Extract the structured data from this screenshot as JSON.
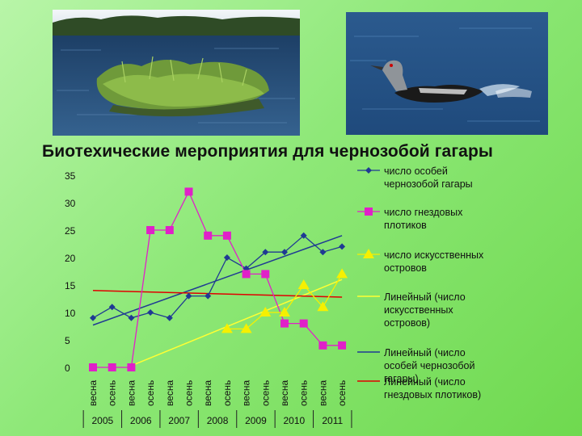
{
  "slide": {
    "title": "Биотехические мероприятия для чернозобой гагары"
  },
  "photos": [
    {
      "name": "island-photo",
      "depicts": "floating island with grass on a lake"
    },
    {
      "name": "loon-photo",
      "depicts": "black-throated loon swimming on water"
    }
  ],
  "chart_data": {
    "type": "line",
    "title": "",
    "xlabel": "",
    "ylabel": "",
    "ylim": [
      0,
      35
    ],
    "yticks": [
      "0",
      "5",
      "10",
      "15",
      "20",
      "25",
      "30",
      "35"
    ],
    "categories": [
      "весна",
      "осень",
      "весна",
      "осень",
      "весна",
      "осень",
      "весна",
      "осень",
      "весна",
      "осень",
      "весна",
      "осень",
      "весна",
      "осень"
    ],
    "years": [
      "2005",
      "2006",
      "2007",
      "2008",
      "2009",
      "2010",
      "2011"
    ],
    "grid": false,
    "legend_position": "right",
    "series": [
      {
        "name": "число особей чернозобой гагары",
        "color": "#1f3a93",
        "marker": "diamond",
        "values": [
          9,
          11,
          9,
          10,
          9,
          13,
          13,
          20,
          18,
          21,
          21,
          24,
          21,
          22
        ]
      },
      {
        "name": "число гнездовых плотиков",
        "color": "#e020c8",
        "marker": "square",
        "values": [
          0,
          0,
          0,
          25,
          25,
          32,
          24,
          24,
          17,
          17,
          8,
          8,
          4,
          4
        ]
      },
      {
        "name": "число искусственных островов",
        "color": "#f5f000",
        "marker": "triangle",
        "values": [
          null,
          null,
          null,
          null,
          null,
          null,
          null,
          7,
          7,
          10,
          10,
          15,
          11,
          17
        ]
      }
    ],
    "trendlines": [
      {
        "name": "Линейный (число искусственных островов)",
        "color": "#ffff33",
        "start": [
          2,
          0.3
        ],
        "end": [
          13,
          16
        ]
      },
      {
        "name": "Линейный (число особей чернозобой гагары)",
        "color": "#1f3a93",
        "start": [
          0,
          7.7
        ],
        "end": [
          13,
          24
        ]
      },
      {
        "name": "Линейный (число гнездовых плотиков)",
        "color": "#e00000",
        "start": [
          0,
          14
        ],
        "end": [
          13,
          12.8
        ]
      }
    ]
  }
}
